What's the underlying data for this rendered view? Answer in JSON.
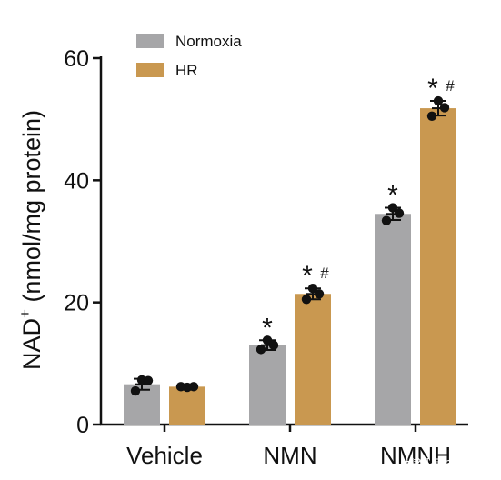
{
  "chart_data": {
    "type": "bar",
    "ylabel_main": "NAD",
    "ylabel_sup": "+",
    "ylabel_rest": " (nmol/mg protein)",
    "ylim": [
      0,
      60
    ],
    "yticks": [
      0,
      20,
      40,
      60
    ],
    "categories": [
      "Vehicle",
      "NMN",
      "NMNH"
    ],
    "legend_position": "top-left",
    "series": [
      {
        "name": "Normoxia",
        "color": "#a6a6a8",
        "values": [
          6.6,
          13.0,
          34.5
        ],
        "sem": [
          0.9,
          0.8,
          1.0
        ],
        "points": [
          [
            7.3,
            5.5,
            7.2
          ],
          [
            13.8,
            12.3,
            13.0
          ],
          [
            35.5,
            33.4,
            34.6
          ]
        ],
        "sig": [
          "",
          "*",
          "*"
        ]
      },
      {
        "name": "HR",
        "color": "#c99850",
        "values": [
          6.2,
          21.4,
          51.8
        ],
        "sem": [
          0.1,
          0.9,
          1.2
        ],
        "points": [
          [
            6.1,
            6.2,
            6.2
          ],
          [
            22.3,
            20.5,
            21.4
          ],
          [
            53.0,
            50.5,
            51.9
          ]
        ],
        "sig": [
          "",
          "* #",
          "* #"
        ]
      }
    ]
  },
  "watermark": "搜狐号@维森美"
}
